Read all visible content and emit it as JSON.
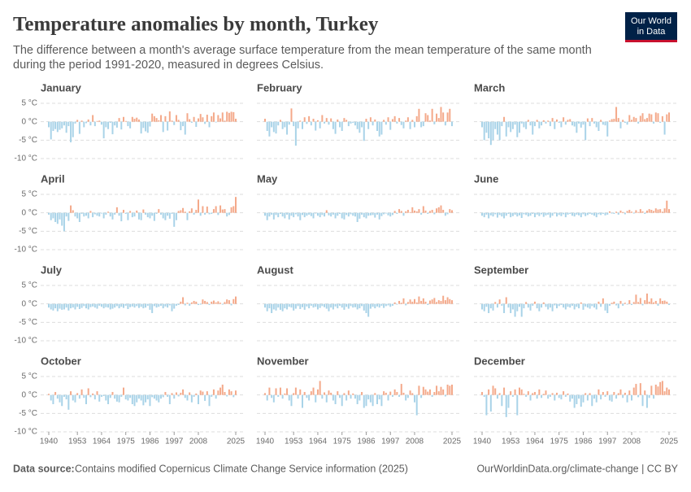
{
  "chart_data": {
    "type": "bar",
    "title": "Temperature anomalies by month, Turkey",
    "subtitle": [
      "The difference between a month's average surface temperature from the mean temperature of the same month",
      "during the period 1991-2020, measured in degrees Celsius."
    ],
    "logo": [
      "Our World",
      "in Data"
    ],
    "source_label": "Data source:",
    "source": "Contains modified Copernicus Climate Change Service information (2025)",
    "credit": "OurWorldinData.org/climate-change | CC BY",
    "color_positive": "#f4a98a",
    "color_negative": "#a9d3e8",
    "grid": true,
    "ylim": [
      -10,
      5
    ],
    "yticks": [
      {
        "value": 5,
        "label": "5 °C"
      },
      {
        "value": 0,
        "label": "0 °C"
      },
      {
        "value": -5,
        "label": "-5 °C"
      },
      {
        "value": -10,
        "label": "-10 °C"
      }
    ],
    "xlim": [
      1940,
      2025
    ],
    "xticks": [
      1940,
      1953,
      1964,
      1975,
      1986,
      1997,
      2008,
      2025
    ],
    "x": [
      1940,
      1941,
      1942,
      1943,
      1944,
      1945,
      1946,
      1947,
      1948,
      1949,
      1950,
      1951,
      1952,
      1953,
      1954,
      1955,
      1956,
      1957,
      1958,
      1959,
      1960,
      1961,
      1962,
      1963,
      1964,
      1965,
      1966,
      1967,
      1968,
      1969,
      1970,
      1971,
      1972,
      1973,
      1974,
      1975,
      1976,
      1977,
      1978,
      1979,
      1980,
      1981,
      1982,
      1983,
      1984,
      1985,
      1986,
      1987,
      1988,
      1989,
      1990,
      1991,
      1992,
      1993,
      1994,
      1995,
      1996,
      1997,
      1998,
      1999,
      2000,
      2001,
      2002,
      2003,
      2004,
      2005,
      2006,
      2007,
      2008,
      2009,
      2010,
      2011,
      2012,
      2013,
      2014,
      2015,
      2016,
      2017,
      2018,
      2019,
      2020,
      2021,
      2022,
      2023,
      2024,
      2025
    ],
    "series": [
      {
        "name": "January",
        "values": [
          -1.5,
          -4.8,
          -2.5,
          -2.0,
          -2.8,
          -2.2,
          -1.8,
          -1.0,
          -3.0,
          -1.2,
          -5.6,
          -4.2,
          -0.5,
          0.5,
          -3.3,
          0.3,
          -1.5,
          -0.4,
          0.6,
          -1.0,
          1.8,
          -1.2,
          0.2,
          0.3,
          -0.8,
          -4.5,
          -1.5,
          -2.0,
          -0.3,
          -3.4,
          -1.0,
          -1.6,
          1.0,
          -2.1,
          1.3,
          0.2,
          -1.2,
          -1.8,
          1.3,
          0.8,
          1.1,
          0.6,
          -3.2,
          -1.7,
          -2.6,
          -3.0,
          -1.3,
          2.2,
          1.5,
          1.0,
          0.4,
          1.8,
          -2.8,
          1.5,
          -2.4,
          2.8,
          0.3,
          -0.9,
          1.8,
          0.5,
          -2.3,
          -1.2,
          -3.5,
          2.3,
          0.7,
          -0.3,
          1.3,
          -1.4,
          0.9,
          2.1,
          1.2,
          -0.6,
          1.9,
          -1.5,
          1.5,
          2.5,
          -0.2,
          1.8,
          0.9,
          2.5,
          0.3,
          2.7,
          2.4,
          2.7,
          2.6,
          0.8
        ]
      },
      {
        "name": "February",
        "values": [
          0.8,
          -2.5,
          -4.0,
          -1.5,
          -2.8,
          -3.2,
          -1.0,
          0.5,
          -2.0,
          -1.5,
          -3.5,
          -0.8,
          3.6,
          -1.2,
          -6.5,
          -1.8,
          0.3,
          -2.0,
          1.2,
          -0.6,
          1.5,
          -1.0,
          0.8,
          -2.4,
          0.4,
          -1.8,
          1.8,
          -0.5,
          1.0,
          -0.8,
          0.9,
          -2.0,
          -3.3,
          0.6,
          -1.5,
          -2.5,
          1.0,
          0.5,
          -1.2,
          -0.5,
          -0.3,
          -1.0,
          -2.0,
          -3.0,
          -1.5,
          -5.2,
          0.8,
          -2.0,
          1.2,
          -1.0,
          0.6,
          -2.5,
          -4.0,
          -3.5,
          0.5,
          -0.8,
          1.2,
          -2.2,
          0.7,
          1.5,
          -0.5,
          1.0,
          -0.9,
          -1.8,
          0.3,
          1.2,
          -2.0,
          0.5,
          -1.5,
          1.5,
          3.5,
          -1.5,
          -1.2,
          2.3,
          1.8,
          0.3,
          3.5,
          -0.7,
          2.2,
          1.0,
          4.0,
          2.5,
          -1.0,
          2.5,
          3.5,
          -1.2
        ]
      },
      {
        "name": "March",
        "values": [
          -1.5,
          -5.0,
          -3.0,
          -4.5,
          -6.3,
          -5.0,
          -2.0,
          -3.5,
          -5.0,
          -1.2,
          1.3,
          -4.0,
          -1.5,
          -2.8,
          -2.0,
          -0.8,
          -4.2,
          -3.0,
          -0.5,
          -1.5,
          -2.0,
          0.5,
          -1.0,
          -3.5,
          -1.2,
          0.5,
          -1.8,
          -1.0,
          0.4,
          -0.5,
          0.3,
          -1.2,
          1.0,
          -2.0,
          0.6,
          -0.3,
          -1.5,
          1.2,
          -0.8,
          0.5,
          0.7,
          -1.0,
          -1.3,
          -3.0,
          -0.5,
          -1.6,
          -0.8,
          -5.0,
          0.9,
          -1.2,
          1.0,
          -0.5,
          -1.5,
          -2.5,
          0.5,
          -0.8,
          -1.0,
          -4.0,
          0.3,
          0.7,
          0.8,
          4.0,
          1.0,
          -1.8,
          0.5,
          -0.3,
          -0.8,
          1.8,
          0.5,
          1.3,
          1.0,
          -0.5,
          1.6,
          2.3,
          0.7,
          1.0,
          2.2,
          2.0,
          -0.5,
          2.5,
          2.3,
          -0.3,
          1.5,
          -3.5,
          2.0,
          2.5
        ]
      },
      {
        "name": "April",
        "values": [
          -0.5,
          -2.0,
          -1.5,
          -2.5,
          -3.0,
          -1.8,
          -3.5,
          -5.0,
          -1.0,
          -2.2,
          2.0,
          0.7,
          -1.0,
          -1.5,
          -2.5,
          -0.3,
          -1.0,
          -0.8,
          -1.5,
          0.5,
          -1.2,
          -0.4,
          -0.8,
          -1.0,
          -0.2,
          -1.5,
          -0.5,
          0.3,
          -1.0,
          -1.8,
          -0.5,
          1.5,
          -0.8,
          -2.3,
          0.8,
          -0.3,
          -2.0,
          0.5,
          -1.2,
          -1.0,
          0.6,
          -1.8,
          -2.0,
          0.9,
          -0.5,
          -1.2,
          -1.5,
          -0.8,
          -2.2,
          -0.3,
          1.0,
          -0.5,
          -1.5,
          -2.0,
          -0.8,
          -1.6,
          -0.3,
          -3.8,
          -2.0,
          0.5,
          0.7,
          1.3,
          0.3,
          -2.0,
          0.4,
          1.2,
          -0.5,
          0.8,
          3.6,
          -0.8,
          1.8,
          -0.5,
          1.7,
          -0.4,
          -0.3,
          1.0,
          1.8,
          -0.6,
          2.0,
          0.9,
          1.0,
          -1.0,
          -0.6,
          1.5,
          1.8,
          4.3
        ]
      },
      {
        "name": "May",
        "values": [
          -0.8,
          -2.0,
          -1.0,
          -0.5,
          -1.8,
          -0.6,
          -1.2,
          -0.3,
          -1.0,
          -1.5,
          -0.5,
          -1.8,
          -0.8,
          -1.2,
          -0.4,
          -1.0,
          -2.0,
          -0.6,
          -1.2,
          -0.8,
          -0.5,
          -0.9,
          -1.5,
          -0.2,
          -0.8,
          -1.2,
          -0.6,
          -1.0,
          0.7,
          -0.7,
          -1.0,
          -0.5,
          -1.5,
          -0.8,
          -0.3,
          -1.5,
          -1.8,
          -0.6,
          -1.0,
          -0.4,
          -0.8,
          -1.0,
          -2.5,
          -1.6,
          -0.5,
          -1.2,
          -1.5,
          -0.8,
          -0.7,
          -0.6,
          -1.3,
          -0.5,
          -1.8,
          -0.9,
          -0.4,
          -0.2,
          -0.7,
          -1.0,
          -0.6,
          0.5,
          -0.3,
          1.0,
          0.5,
          -0.8,
          0.4,
          0.8,
          0.2,
          1.5,
          0.6,
          0.4,
          1.0,
          -0.5,
          1.8,
          0.6,
          -0.3,
          0.5,
          0.8,
          -0.4,
          1.2,
          1.5,
          2.0,
          0.8,
          -0.8,
          -0.4,
          1.0,
          0.7
        ]
      },
      {
        "name": "June",
        "values": [
          -0.8,
          -1.2,
          -0.5,
          -1.5,
          -0.7,
          -1.0,
          -0.4,
          -1.3,
          -0.6,
          -1.0,
          -1.5,
          -0.8,
          -0.3,
          -1.2,
          -0.9,
          -0.5,
          -1.0,
          -0.7,
          -1.4,
          -0.4,
          -0.6,
          -1.0,
          -0.8,
          -0.3,
          -1.2,
          -0.5,
          -0.9,
          -0.4,
          -1.1,
          -0.7,
          -0.5,
          -1.3,
          -0.8,
          -0.2,
          -1.0,
          -0.6,
          -0.9,
          -0.4,
          -1.2,
          -0.5,
          -0.3,
          -0.8,
          -1.0,
          -0.5,
          -0.7,
          -1.2,
          -0.4,
          -0.9,
          -0.6,
          -0.3,
          -0.5,
          -0.8,
          -1.2,
          -0.4,
          -0.6,
          -0.3,
          -0.7,
          -0.5,
          0.4,
          -0.2,
          -0.3,
          0.3,
          -0.5,
          0.6,
          0.2,
          -0.4,
          0.5,
          0.8,
          0.3,
          -0.2,
          0.7,
          0.2,
          1.0,
          0.4,
          -0.3,
          0.6,
          1.0,
          0.8,
          0.5,
          1.2,
          0.9,
          1.0,
          0.3,
          1.2,
          3.3,
          1.0
        ]
      },
      {
        "name": "July",
        "values": [
          -1.0,
          -1.5,
          -1.8,
          -1.2,
          -2.0,
          -1.3,
          -1.6,
          -1.5,
          -1.0,
          -1.8,
          -1.2,
          -1.0,
          -1.5,
          -0.8,
          -1.4,
          -1.1,
          -0.6,
          -1.2,
          -1.5,
          -0.9,
          -0.7,
          -1.0,
          -1.3,
          -0.5,
          -0.8,
          -1.2,
          -0.9,
          -1.0,
          -1.5,
          -1.3,
          -1.0,
          -0.6,
          -1.2,
          -0.8,
          -1.1,
          -0.5,
          -1.4,
          -0.9,
          -0.7,
          -1.0,
          -0.6,
          -1.1,
          -0.8,
          -1.2,
          -1.0,
          -0.5,
          -1.6,
          -2.5,
          -0.6,
          -1.0,
          -0.8,
          -0.5,
          -1.2,
          -0.7,
          -1.0,
          -0.4,
          -2.0,
          -1.3,
          -0.5,
          -0.3,
          0.6,
          1.8,
          -0.4,
          0.3,
          -0.5,
          0.4,
          0.8,
          0.6,
          -0.3,
          -0.2,
          1.2,
          0.8,
          0.5,
          -0.3,
          0.6,
          0.9,
          0.4,
          0.7,
          0.3,
          -0.2,
          0.5,
          1.2,
          1.0,
          -0.4,
          1.3,
          2.0
        ]
      },
      {
        "name": "August",
        "values": [
          -1.0,
          -2.0,
          -1.2,
          -2.5,
          -1.5,
          -1.8,
          -1.0,
          -1.6,
          -2.0,
          -1.2,
          -1.5,
          -0.8,
          -1.0,
          -1.8,
          -1.3,
          -0.6,
          -1.4,
          -0.9,
          -1.6,
          -0.7,
          -1.2,
          -0.5,
          -1.0,
          -0.8,
          -1.5,
          -1.1,
          -0.6,
          -0.9,
          -1.3,
          -2.0,
          -1.0,
          -1.5,
          -0.7,
          -1.2,
          -0.5,
          -1.0,
          -1.6,
          -0.8,
          -1.3,
          -0.6,
          -1.0,
          -0.9,
          -1.5,
          -1.2,
          -0.6,
          -1.8,
          -2.5,
          -3.5,
          -1.3,
          -0.8,
          -1.2,
          -0.7,
          -1.0,
          -0.5,
          -1.1,
          -0.6,
          -0.4,
          -0.8,
          -0.5,
          0.4,
          -0.2,
          0.8,
          0.3,
          1.5,
          -0.4,
          0.5,
          1.2,
          0.6,
          1.3,
          0.4,
          2.0,
          0.8,
          1.5,
          0.6,
          -0.3,
          0.9,
          1.2,
          1.6,
          0.5,
          1.0,
          0.8,
          2.2,
          1.0,
          1.8,
          1.3,
          1.0
        ]
      },
      {
        "name": "September",
        "values": [
          -1.5,
          -2.0,
          -0.8,
          -2.5,
          -1.2,
          -1.8,
          0.5,
          -1.0,
          1.2,
          -0.5,
          -2.5,
          1.8,
          -1.0,
          -2.5,
          -1.5,
          -3.5,
          -2.0,
          -0.8,
          -3.5,
          -1.2,
          0.5,
          -1.0,
          -1.8,
          -0.5,
          0.6,
          -1.2,
          -2.0,
          -1.0,
          0.4,
          -0.8,
          -1.5,
          -1.0,
          -2.0,
          -0.4,
          -1.2,
          -0.6,
          -0.3,
          -1.0,
          -1.5,
          -0.8,
          -1.0,
          -0.5,
          -1.5,
          -0.8,
          -1.2,
          0.4,
          -1.6,
          -0.7,
          -1.0,
          -1.3,
          -0.6,
          -1.0,
          -1.5,
          0.6,
          -0.8,
          1.5,
          -1.8,
          -2.5,
          -0.5,
          0.3,
          0.6,
          -0.4,
          -1.2,
          0.8,
          -0.5,
          0.3,
          -0.2,
          1.0,
          -0.3,
          0.5,
          2.5,
          0.5,
          1.6,
          -0.4,
          1.0,
          2.8,
          0.6,
          1.5,
          0.4,
          0.8,
          -0.5,
          1.5,
          0.8,
          0.9,
          0.6,
          -0.3
        ]
      },
      {
        "name": "October",
        "values": [
          0.3,
          -1.5,
          -2.5,
          0.8,
          -1.0,
          -2.0,
          -3.0,
          -0.5,
          -1.2,
          -4.0,
          1.0,
          -1.5,
          -2.0,
          0.5,
          -1.0,
          1.5,
          -0.8,
          -2.5,
          1.8,
          -0.6,
          0.4,
          -1.2,
          1.0,
          -1.8,
          -0.5,
          -0.3,
          -1.5,
          -2.5,
          -0.8,
          0.8,
          -1.0,
          -1.8,
          -2.0,
          -0.5,
          2.0,
          -1.2,
          -1.5,
          -0.8,
          -2.5,
          -3.0,
          -2.0,
          -1.0,
          -1.5,
          -2.8,
          -2.0,
          -1.2,
          -3.0,
          -0.6,
          -1.0,
          -1.5,
          -2.0,
          -1.0,
          -0.6,
          0.8,
          -0.5,
          -2.5,
          0.5,
          -1.0,
          0.7,
          -0.4,
          0.6,
          1.5,
          -0.8,
          -1.5,
          0.7,
          -2.0,
          -0.5,
          0.4,
          -2.5,
          1.2,
          0.9,
          -1.6,
          1.0,
          -3.0,
          -0.5,
          1.5,
          -1.0,
          1.2,
          2.0,
          2.8,
          0.8,
          -0.4,
          1.5,
          1.0,
          -0.6,
          1.2
        ]
      },
      {
        "name": "November",
        "values": [
          0.5,
          -1.5,
          2.0,
          -0.8,
          -2.0,
          1.8,
          -0.5,
          2.0,
          -1.0,
          0.4,
          1.8,
          -1.5,
          -3.0,
          0.5,
          2.0,
          -1.0,
          1.5,
          -3.5,
          0.8,
          -0.8,
          -1.5,
          1.0,
          2.0,
          -2.0,
          1.5,
          3.8,
          -1.0,
          0.7,
          -2.0,
          1.2,
          0.6,
          -1.5,
          -2.5,
          1.0,
          -0.8,
          -3.0,
          0.5,
          -1.5,
          1.2,
          -1.0,
          0.4,
          -1.0,
          -2.5,
          -1.5,
          0.8,
          -3.5,
          -3.0,
          -1.2,
          -2.0,
          -3.0,
          0.5,
          -2.5,
          -1.2,
          -3.0,
          1.0,
          0.6,
          -1.5,
          0.9,
          -0.5,
          1.5,
          0.8,
          -0.5,
          3.0,
          0.6,
          -1.5,
          -0.8,
          1.2,
          0.5,
          -2.0,
          -5.5,
          2.5,
          -0.8,
          2.2,
          1.5,
          0.9,
          1.5,
          -0.5,
          0.8,
          2.5,
          1.0,
          2.2,
          1.5,
          -0.4,
          2.8,
          2.5,
          2.8
        ]
      },
      {
        "name": "December",
        "values": [
          0.8,
          -0.5,
          -5.5,
          1.5,
          -4.5,
          2.5,
          1.8,
          -1.0,
          0.5,
          -3.0,
          2.0,
          -6.0,
          -3.5,
          1.0,
          -0.5,
          1.5,
          -5.5,
          2.0,
          1.5,
          0.3,
          -0.5,
          1.0,
          -1.5,
          0.5,
          0.8,
          -1.0,
          1.5,
          -0.8,
          0.3,
          1.2,
          -1.0,
          -0.5,
          0.5,
          -1.5,
          0.6,
          -0.8,
          -1.2,
          1.0,
          -0.5,
          0.4,
          -1.8,
          -1.0,
          -3.5,
          -2.5,
          -1.0,
          -3.2,
          -2.0,
          0.5,
          -1.5,
          0.5,
          -3.0,
          -1.0,
          -2.0,
          1.5,
          -1.2,
          0.8,
          -0.5,
          1.0,
          -1.5,
          -1.8,
          0.8,
          -1.0,
          0.5,
          1.5,
          -0.8,
          0.6,
          -2.0,
          1.2,
          -1.5,
          2.0,
          3.0,
          -0.6,
          3.2,
          -3.0,
          1.2,
          -3.5,
          -0.8,
          2.5,
          -1.0,
          2.8,
          2.3,
          3.5,
          3.8,
          1.0,
          2.0,
          1.5
        ]
      }
    ]
  }
}
